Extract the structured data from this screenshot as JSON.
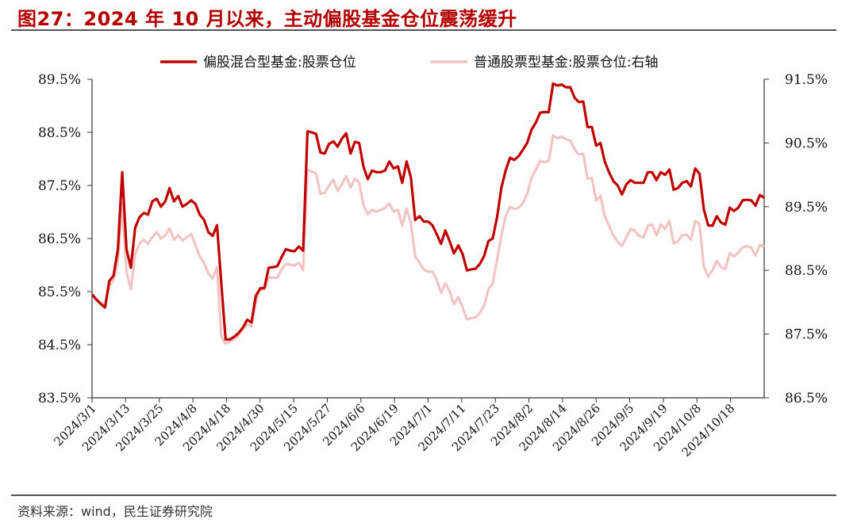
{
  "header": {
    "title": "图27：2024 年 10 月以来，主动偏股基金仓位震荡缓升"
  },
  "footer": {
    "source": "资料来源：wind，民生证券研究院"
  },
  "colors": {
    "series1": "#c00000",
    "series2": "#f2c4c4",
    "axis": "#333333",
    "title": "#b30000"
  },
  "chart_data": {
    "type": "line",
    "title": "",
    "xlabel": "",
    "ylabel": "",
    "ylim": [
      83.5,
      89.5
    ],
    "y2lim": [
      86.5,
      91.5
    ],
    "yticks": [
      "83.5%",
      "84.5%",
      "85.5%",
      "86.5%",
      "87.5%",
      "88.5%",
      "89.5%"
    ],
    "y2ticks": [
      "86.5%",
      "87.5%",
      "88.5%",
      "89.5%",
      "90.5%",
      "91.5%"
    ],
    "legend_position": "top-center",
    "grid": false,
    "x_tick_labels": [
      "2024/3/1",
      "2024/3/13",
      "2024/3/25",
      "2024/4/8",
      "2024/4/18",
      "2024/4/30",
      "2024/5/15",
      "2024/5/27",
      "2024/6/6",
      "2024/6/19",
      "2024/7/1",
      "2024/7/11",
      "2024/7/23",
      "2024/8/2",
      "2024/8/14",
      "2024/8/26",
      "2024/9/5",
      "2024/9/19",
      "2024/10/8",
      "2024/10/18"
    ],
    "series": [
      {
        "name": "偏股混合型基金:股票仓位",
        "axis": "left",
        "values": [
          85.45,
          85.35,
          85.27,
          85.2,
          85.7,
          85.8,
          86.3,
          87.75,
          86.3,
          85.95,
          86.7,
          86.9,
          86.98,
          86.95,
          87.2,
          87.25,
          87.1,
          87.2,
          87.45,
          87.2,
          87.3,
          87.1,
          87.15,
          87.22,
          87.15,
          86.95,
          86.85,
          86.62,
          86.55,
          86.75,
          85.65,
          84.6,
          84.6,
          84.65,
          84.72,
          84.82,
          84.97,
          84.92,
          85.42,
          85.56,
          85.57,
          85.95,
          85.96,
          85.98,
          86.15,
          86.3,
          86.27,
          86.26,
          86.35,
          86.27,
          88.52,
          88.5,
          88.47,
          88.12,
          88.1,
          88.28,
          88.33,
          88.23,
          88.38,
          88.48,
          88.1,
          88.32,
          88.3,
          87.85,
          87.62,
          87.78,
          87.75,
          87.75,
          87.78,
          87.95,
          87.82,
          87.86,
          87.55,
          87.95,
          87.65,
          86.85,
          86.92,
          86.82,
          86.82,
          86.75,
          86.58,
          86.4,
          86.65,
          86.45,
          86.22,
          86.37,
          86.21,
          85.9,
          85.92,
          85.93,
          86.02,
          86.17,
          86.45,
          86.5,
          86.9,
          87.45,
          87.78,
          88.02,
          87.98,
          88.05,
          88.17,
          88.3,
          88.55,
          88.68,
          88.87,
          88.88,
          88.88,
          89.42,
          89.38,
          89.4,
          89.35,
          89.35,
          89.15,
          89.07,
          89.08,
          88.6,
          88.6,
          88.25,
          88.3,
          87.95,
          87.75,
          87.58,
          87.5,
          87.33,
          87.52,
          87.6,
          87.55,
          87.55,
          87.55,
          87.75,
          87.75,
          87.6,
          87.75,
          87.7,
          87.8,
          87.42,
          87.45,
          87.55,
          87.58,
          87.48,
          87.82,
          87.72,
          87.05,
          86.75,
          86.74,
          86.92,
          86.8,
          86.76,
          87.08,
          87.02,
          87.08,
          87.22,
          87.23,
          87.22,
          87.12,
          87.32,
          87.27
        ]
      },
      {
        "name": "普通股票型基金:股票仓位:右轴",
        "axis": "right",
        "values": [
          88.13,
          88.05,
          88.0,
          87.92,
          88.25,
          88.35,
          88.65,
          89.55,
          88.48,
          88.2,
          88.75,
          88.92,
          88.98,
          88.92,
          89.02,
          89.1,
          89.0,
          89.05,
          89.16,
          88.98,
          89.05,
          88.97,
          89.02,
          89.07,
          88.9,
          88.72,
          88.62,
          88.45,
          88.37,
          88.55,
          87.45,
          87.35,
          87.38,
          87.42,
          87.48,
          87.58,
          87.65,
          87.62,
          88.0,
          88.2,
          88.2,
          88.38,
          88.39,
          88.38,
          88.52,
          88.6,
          88.59,
          88.58,
          88.62,
          88.5,
          90.08,
          90.05,
          90.02,
          89.7,
          89.72,
          89.83,
          89.92,
          89.75,
          89.85,
          89.98,
          89.8,
          89.94,
          89.88,
          89.52,
          89.38,
          89.45,
          89.42,
          89.45,
          89.48,
          89.55,
          89.42,
          89.45,
          89.2,
          89.47,
          89.25,
          88.72,
          88.62,
          88.51,
          88.48,
          88.48,
          88.35,
          88.15,
          88.3,
          88.17,
          87.97,
          88.08,
          87.92,
          87.73,
          87.75,
          87.76,
          87.83,
          87.95,
          88.2,
          88.3,
          88.66,
          89.05,
          89.35,
          89.5,
          89.46,
          89.48,
          89.55,
          89.7,
          89.95,
          90.08,
          90.22,
          90.2,
          90.22,
          90.62,
          90.57,
          90.6,
          90.56,
          90.54,
          90.4,
          90.32,
          90.33,
          89.94,
          89.95,
          89.6,
          89.67,
          89.35,
          89.2,
          89.05,
          88.95,
          88.88,
          89.02,
          89.15,
          89.12,
          89.04,
          89.02,
          89.2,
          89.22,
          89.05,
          89.22,
          89.15,
          89.28,
          88.92,
          88.96,
          89.05,
          89.06,
          88.98,
          89.28,
          89.22,
          88.56,
          88.4,
          88.5,
          88.65,
          88.55,
          88.52,
          88.77,
          88.72,
          88.78,
          88.86,
          88.88,
          88.86,
          88.73,
          88.9,
          88.87
        ]
      }
    ]
  }
}
